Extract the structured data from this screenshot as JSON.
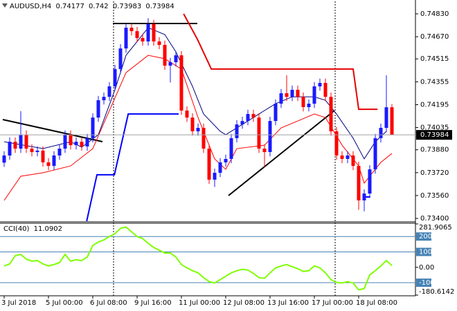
{
  "chart_data": [
    {
      "type": "candlestick",
      "series": [
        {
          "name": "AUDUSD,H4",
          "up_color": "#1a1aff",
          "down_color": "#ff0000",
          "values": [
            [
              0.7379,
              0.7387,
              0.7376,
              0.7384
            ],
            [
              0.7384,
              0.73966,
              0.7381,
              0.73936
            ],
            [
              0.73936,
              0.73966,
              0.73858,
              0.73888
            ],
            [
              0.73888,
              0.7415,
              0.73858,
              0.73985
            ],
            [
              0.73985,
              0.74015,
              0.73858,
              0.73888
            ],
            [
              0.73888,
              0.73918,
              0.73834,
              0.73864
            ],
            [
              0.73864,
              0.73904,
              0.73834,
              0.73874
            ],
            [
              0.73874,
              0.73904,
              0.73762,
              0.73792
            ],
            [
              0.73792,
              0.73822,
              0.73737,
              0.73767
            ],
            [
              0.73767,
              0.7387,
              0.73737,
              0.7384
            ],
            [
              0.7384,
              0.73918,
              0.7381,
              0.73888
            ],
            [
              0.73888,
              0.74015,
              0.73858,
              0.73985
            ],
            [
              0.73985,
              0.74015,
              0.73882,
              0.73912
            ],
            [
              0.73912,
              0.73966,
              0.73882,
              0.73936
            ],
            [
              0.73936,
              0.73966,
              0.73873,
              0.73903
            ],
            [
              0.73903,
              0.73991,
              0.73873,
              0.73961
            ],
            [
              0.73961,
              0.74135,
              0.73931,
              0.74105
            ],
            [
              0.74105,
              0.74256,
              0.74075,
              0.74226
            ],
            [
              0.74226,
              0.7428,
              0.74196,
              0.7425
            ],
            [
              0.7425,
              0.74353,
              0.7422,
              0.74323
            ],
            [
              0.74323,
              0.74474,
              0.74293,
              0.74444
            ],
            [
              0.74444,
              0.74618,
              0.74414,
              0.74588
            ],
            [
              0.74588,
              0.74763,
              0.74558,
              0.74733
            ],
            [
              0.74733,
              0.74763,
              0.74679,
              0.74709
            ],
            [
              0.74709,
              0.74739,
              0.74631,
              0.74661
            ],
            [
              0.74661,
              0.74691,
              0.74607,
              0.74637
            ],
            [
              0.74637,
              0.748,
              0.74607,
              0.74758
            ],
            [
              0.74758,
              0.74788,
              0.74607,
              0.74637
            ],
            [
              0.74637,
              0.74667,
              0.74583,
              0.74613
            ],
            [
              0.74613,
              0.74643,
              0.74438,
              0.74468
            ],
            [
              0.74468,
              0.74522,
              0.7435,
              0.74492
            ],
            [
              0.74492,
              0.7457,
              0.74462,
              0.7454
            ],
            [
              0.7454,
              0.7457,
              0.74124,
              0.74154
            ],
            [
              0.74154,
              0.74184,
              0.74075,
              0.74105
            ],
            [
              0.74105,
              0.74135,
              0.73979,
              0.74009
            ],
            [
              0.74009,
              0.74063,
              0.73979,
              0.74033
            ],
            [
              0.74033,
              0.74063,
              0.73858,
              0.73888
            ],
            [
              0.73888,
              0.73918,
              0.73641,
              0.73671
            ],
            [
              0.73671,
              0.73749,
              0.7362,
              0.73719
            ],
            [
              0.73719,
              0.73822,
              0.73689,
              0.73792
            ],
            [
              0.73792,
              0.73846,
              0.73762,
              0.73816
            ],
            [
              0.73816,
              0.73991,
              0.73786,
              0.73961
            ],
            [
              0.73961,
              0.74087,
              0.73931,
              0.74057
            ],
            [
              0.74057,
              0.74111,
              0.74027,
              0.74081
            ],
            [
              0.74081,
              0.7416,
              0.74051,
              0.7413
            ],
            [
              0.7413,
              0.7416,
              0.74075,
              0.74105
            ],
            [
              0.74105,
              0.74135,
              0.73858,
              0.73888
            ],
            [
              0.73888,
              0.73918,
              0.7376,
              0.73864
            ],
            [
              0.73864,
              0.74111,
              0.73834,
              0.74081
            ],
            [
              0.74081,
              0.74232,
              0.74051,
              0.74202
            ],
            [
              0.74202,
              0.74305,
              0.74172,
              0.74275
            ],
            [
              0.74275,
              0.744,
              0.7422,
              0.7425
            ],
            [
              0.7425,
              0.74329,
              0.7422,
              0.74299
            ],
            [
              0.74299,
              0.74329,
              0.7422,
              0.7425
            ],
            [
              0.7425,
              0.7428,
              0.74148,
              0.74178
            ],
            [
              0.74178,
              0.74232,
              0.74148,
              0.74202
            ],
            [
              0.74202,
              0.74353,
              0.74172,
              0.74323
            ],
            [
              0.74323,
              0.74377,
              0.74293,
              0.74347
            ],
            [
              0.74347,
              0.74377,
              0.7422,
              0.7425
            ],
            [
              0.7425,
              0.7428,
              0.73979,
              0.74009
            ],
            [
              0.74009,
              0.74039,
              0.7381,
              0.7384
            ],
            [
              0.7384,
              0.7387,
              0.73786,
              0.73816
            ],
            [
              0.73816,
              0.7387,
              0.73786,
              0.7384
            ],
            [
              0.7384,
              0.7387,
              0.73737,
              0.73767
            ],
            [
              0.73767,
              0.73797,
              0.7346,
              0.73526
            ],
            [
              0.73526,
              0.73604,
              0.7345,
              0.73574
            ],
            [
              0.73574,
              0.73773,
              0.73544,
              0.73743
            ],
            [
              0.73743,
              0.73991,
              0.73713,
              0.73961
            ],
            [
              0.73961,
              0.74063,
              0.73931,
              0.74033
            ],
            [
              0.74033,
              0.744,
              0.74003,
              0.74177
            ],
            [
              0.74177,
              0.742,
              0.73983,
              0.73984
            ]
          ]
        }
      ],
      "overlays": [
        {
          "color": "#000080",
          "width": 1,
          "points": [
            [
              0,
              0.73936
            ],
            [
              7,
              0.73888
            ],
            [
              12,
              0.73936
            ],
            [
              14,
              0.73898
            ],
            [
              17,
              0.73985
            ],
            [
              20,
              0.74299
            ],
            [
              22,
              0.7454
            ],
            [
              26,
              0.74733
            ],
            [
              29,
              0.74685
            ],
            [
              31,
              0.74564
            ],
            [
              34,
              0.74323
            ],
            [
              36,
              0.7413
            ],
            [
              39,
              0.74009
            ],
            [
              40,
              0.73985
            ],
            [
              43,
              0.74057
            ],
            [
              46,
              0.7413
            ],
            [
              49,
              0.74202
            ],
            [
              52,
              0.7425
            ],
            [
              56,
              0.7425
            ],
            [
              58,
              0.74226
            ],
            [
              60,
              0.7413
            ],
            [
              63,
              0.73961
            ],
            [
              65,
              0.73816
            ],
            [
              67,
              0.73936
            ],
            [
              69,
              0.74009
            ]
          ]
        },
        {
          "color": "#ff0000",
          "width": 1,
          "points": [
            [
              0,
              0.73526
            ],
            [
              3,
              0.73695
            ],
            [
              7,
              0.73719
            ],
            [
              12,
              0.73767
            ],
            [
              16,
              0.73888
            ],
            [
              19,
              0.74154
            ],
            [
              22,
              0.74419
            ],
            [
              26,
              0.7454
            ],
            [
              29,
              0.74516
            ],
            [
              32,
              0.74444
            ],
            [
              35,
              0.74105
            ],
            [
              38,
              0.73816
            ],
            [
              40,
              0.73743
            ],
            [
              42,
              0.73888
            ],
            [
              47,
              0.73912
            ],
            [
              50,
              0.74033
            ],
            [
              53,
              0.74081
            ],
            [
              56,
              0.7413
            ],
            [
              58,
              0.74105
            ],
            [
              61,
              0.73912
            ],
            [
              64,
              0.73767
            ],
            [
              65,
              0.73647
            ],
            [
              68,
              0.73792
            ],
            [
              70,
              0.73854
            ]
          ]
        },
        {
          "color": "#e60000",
          "width": 2,
          "points": [
            [
              32.4,
              0.7483
            ],
            [
              34.9,
              0.74651
            ],
            [
              37.4,
              0.74444
            ],
            [
              63,
              0.74444
            ],
            [
              64,
              0.74163
            ],
            [
              67.4,
              0.74163
            ]
          ]
        },
        {
          "color": "#0000ff",
          "width": 2,
          "points": [
            [
              14.9,
              0.73381
            ],
            [
              16.75,
              0.73705
            ],
            [
              19.9,
              0.73705
            ],
            [
              22.4,
              0.7413
            ],
            [
              31.5,
              0.7413
            ]
          ]
        },
        {
          "color": "#0000ff",
          "width": 2,
          "points": [
            [
              65.1,
              0.7355
            ],
            [
              66.1,
              0.7355
            ]
          ]
        }
      ],
      "categories": [
        "3 Jul 2018",
        null,
        null,
        null,
        null,
        null,
        null,
        null,
        "5 Jul 00:00",
        null,
        null,
        null,
        null,
        null,
        null,
        null,
        "6 Jul 08:00",
        null,
        null,
        null,
        null,
        null,
        null,
        null,
        "9 Jul 16:00",
        null,
        null,
        null,
        null,
        null,
        null,
        null,
        "11 Jul 00:00",
        null,
        null,
        null,
        null,
        null,
        null,
        null,
        "12 Jul 08:00",
        null,
        null,
        null,
        null,
        null,
        null,
        null,
        "13 Jul 16:00",
        null,
        null,
        null,
        null,
        null,
        null,
        null,
        "17 Jul 00:00",
        null,
        null,
        null,
        null,
        null,
        null,
        null,
        "18 Jul 08:00",
        null,
        null,
        null,
        null,
        null,
        null
      ],
      "ylim": [
        0.73381,
        0.74917
      ],
      "yticks": [
        {
          "value": 0.7483,
          "label": "0.74830"
        },
        {
          "value": 0.7467,
          "label": "0.74670"
        },
        0.74515,
        0.74355,
        0.74195,
        0.74035,
        {
          "value": 0.7388,
          "label": "0.73880"
        },
        {
          "value": 0.7372,
          "label": "0.73720"
        },
        {
          "value": 0.7356,
          "label": "0.73560"
        },
        {
          "value": 0.734,
          "label": "0.73400"
        }
      ]
    },
    {
      "type": "line",
      "series": [
        {
          "name": "CCI(40)",
          "color": "#7fff00",
          "values": [
            9,
            22,
            76,
            84,
            53,
            40,
            44,
            22,
            9,
            18,
            31,
            84,
            40,
            49,
            44,
            67,
            142,
            164,
            178,
            200,
            218,
            253,
            262,
            231,
            200,
            187,
            156,
            129,
            111,
            93,
            93,
            67,
            18,
            -4,
            -22,
            -36,
            -67,
            -93,
            -102,
            -80,
            -58,
            -36,
            -22,
            -13,
            -18,
            -40,
            -67,
            -71,
            -36,
            -4,
            9,
            18,
            4,
            -9,
            -27,
            -22,
            9,
            -4,
            -36,
            -80,
            -98,
            -102,
            -93,
            -102,
            -147,
            -138,
            -49,
            -22,
            9,
            44,
            11.0902
          ]
        }
      ],
      "ylim": [
        -180.6142,
        281.9065
      ],
      "yticks": [
        281.9065,
        {
          "value": 0,
          "label": "0.00"
        },
        -180.6142
      ],
      "levels": [
        200,
        100,
        -100
      ],
      "level_color": "#4682b4"
    }
  ]
}
